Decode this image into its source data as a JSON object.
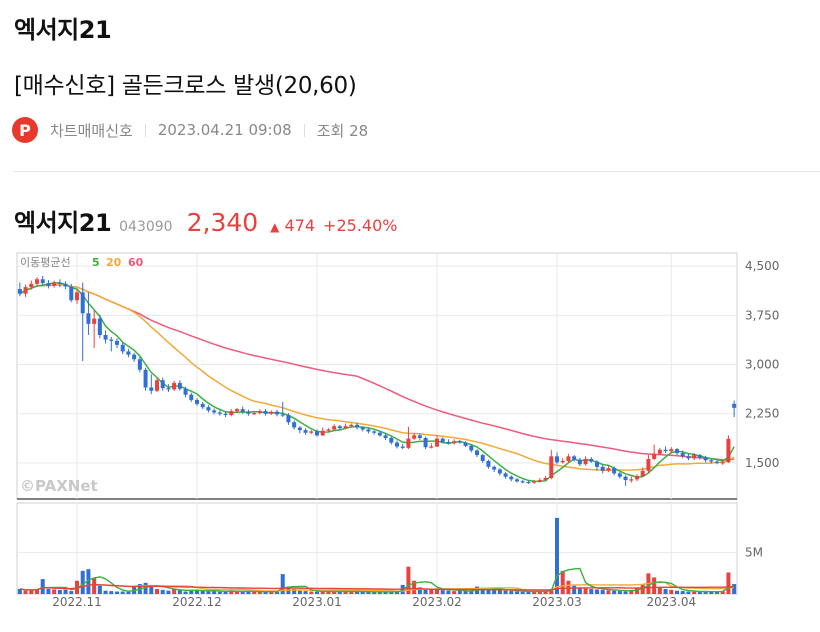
{
  "page": {
    "stock_title": "엑서지21",
    "post_title": "[매수신호] 골든크로스 발생(20,60)",
    "logo_letter": "P",
    "author": "차트매매신호",
    "datetime": "2023.04.21 09:08",
    "views": "조회 28"
  },
  "stock": {
    "name": "엑서지21",
    "code": "043090",
    "price": "2,340",
    "change_arrow": "▲",
    "change": "474",
    "change_rate": "+25.40%"
  },
  "colors": {
    "up": "#e8413e",
    "down": "#2f6fd6",
    "ma5": "#3cb043",
    "ma20": "#f2a93b",
    "ma60": "#ef5b7c",
    "grid": "#e9e9e9"
  },
  "chart_data": {
    "type": "candlestick",
    "legend": {
      "title": "이동평균선",
      "items": [
        "5",
        "20",
        "60"
      ]
    },
    "watermark": "©PAXNet",
    "price_axis": {
      "ticks": [
        "4,500",
        "3,750",
        "3,000",
        "2,250",
        "1,500"
      ],
      "values": [
        4500,
        3750,
        3000,
        2250,
        1500
      ],
      "ylim": [
        950,
        4700
      ]
    },
    "volume_axis": {
      "ticks": [
        "5M"
      ],
      "values": [
        5000000
      ],
      "ylim": [
        0,
        11000000
      ]
    },
    "x_labels": [
      "2022.11",
      "2022.12",
      "2023.01",
      "2023.02",
      "2023.03",
      "2023.04"
    ],
    "x_label_index": [
      10,
      31,
      52,
      73,
      94,
      114
    ],
    "candles": [
      [
        4150,
        4080,
        4250,
        4040
      ],
      [
        4080,
        4180,
        4220,
        4030
      ],
      [
        4180,
        4230,
        4280,
        4140
      ],
      [
        4230,
        4300,
        4330,
        4190
      ],
      [
        4300,
        4240,
        4350,
        4200
      ],
      [
        4240,
        4200,
        4290,
        4160
      ],
      [
        4200,
        4250,
        4280,
        4170
      ],
      [
        4250,
        4230,
        4300,
        4180
      ],
      [
        4230,
        4190,
        4270,
        4150
      ],
      [
        4190,
        3980,
        4230,
        3950
      ],
      [
        3980,
        4100,
        4150,
        3920
      ],
      [
        4100,
        3780,
        4250,
        3050
      ],
      [
        3780,
        3620,
        4100,
        3450
      ],
      [
        3620,
        3700,
        3820,
        3250
      ],
      [
        3700,
        3450,
        3760,
        3400
      ],
      [
        3450,
        3380,
        3520,
        3320
      ],
      [
        3380,
        3360,
        3420,
        3200
      ],
      [
        3360,
        3300,
        3400,
        3250
      ],
      [
        3300,
        3200,
        3340,
        3160
      ],
      [
        3200,
        3150,
        3240,
        3110
      ],
      [
        3150,
        3080,
        3180,
        3040
      ],
      [
        3080,
        2920,
        3120,
        2880
      ],
      [
        2920,
        2650,
        2950,
        2600
      ],
      [
        2650,
        2600,
        2850,
        2550
      ],
      [
        2600,
        2760,
        2800,
        2580
      ],
      [
        2760,
        2640,
        2800,
        2600
      ],
      [
        2640,
        2620,
        2700,
        2580
      ],
      [
        2620,
        2720,
        2750,
        2600
      ],
      [
        2720,
        2630,
        2760,
        2600
      ],
      [
        2630,
        2540,
        2660,
        2500
      ],
      [
        2540,
        2460,
        2570,
        2430
      ],
      [
        2460,
        2400,
        2490,
        2370
      ],
      [
        2400,
        2350,
        2430,
        2320
      ],
      [
        2350,
        2300,
        2380,
        2270
      ],
      [
        2300,
        2270,
        2330,
        2240
      ],
      [
        2270,
        2250,
        2300,
        2220
      ],
      [
        2250,
        2230,
        2290,
        2200
      ],
      [
        2230,
        2290,
        2320,
        2210
      ],
      [
        2290,
        2320,
        2340,
        2260
      ],
      [
        2320,
        2280,
        2360,
        2250
      ],
      [
        2280,
        2250,
        2310,
        2220
      ],
      [
        2250,
        2260,
        2290,
        2230
      ],
      [
        2260,
        2290,
        2320,
        2240
      ],
      [
        2290,
        2250,
        2320,
        2220
      ],
      [
        2250,
        2280,
        2300,
        2230
      ],
      [
        2280,
        2240,
        2310,
        2210
      ],
      [
        2240,
        2230,
        2430,
        2200
      ],
      [
        2230,
        2120,
        2260,
        2080
      ],
      [
        2120,
        2040,
        2150,
        2010
      ],
      [
        2040,
        2000,
        2060,
        1950
      ],
      [
        2000,
        1960,
        2030,
        1930
      ],
      [
        1960,
        1980,
        2000,
        1940
      ],
      [
        1980,
        1920,
        2010,
        1900
      ],
      [
        1920,
        1990,
        2040,
        1910
      ],
      [
        1990,
        2010,
        2030,
        1970
      ],
      [
        2010,
        2060,
        2090,
        1990
      ],
      [
        2060,
        2030,
        2080,
        2000
      ],
      [
        2030,
        2060,
        2100,
        2010
      ],
      [
        2060,
        2080,
        2100,
        2040
      ],
      [
        2080,
        2040,
        2110,
        2010
      ],
      [
        2040,
        2010,
        2060,
        1980
      ],
      [
        2010,
        1980,
        2030,
        1950
      ],
      [
        1980,
        1960,
        2000,
        1930
      ],
      [
        1960,
        1920,
        1990,
        1900
      ],
      [
        1920,
        1880,
        1950,
        1850
      ],
      [
        1880,
        1810,
        1900,
        1780
      ],
      [
        1810,
        1750,
        1840,
        1720
      ],
      [
        1750,
        1730,
        1790,
        1710
      ],
      [
        1730,
        1870,
        2050,
        1710
      ],
      [
        1870,
        1920,
        1950,
        1850
      ],
      [
        1920,
        1880,
        1950,
        1850
      ],
      [
        1880,
        1740,
        1900,
        1710
      ],
      [
        1740,
        1750,
        1800,
        1720
      ],
      [
        1750,
        1870,
        1920,
        1740
      ],
      [
        1870,
        1820,
        1890,
        1800
      ],
      [
        1820,
        1800,
        1860,
        1780
      ],
      [
        1800,
        1830,
        1860,
        1780
      ],
      [
        1830,
        1810,
        1850,
        1790
      ],
      [
        1810,
        1760,
        1830,
        1740
      ],
      [
        1760,
        1690,
        1780,
        1660
      ],
      [
        1690,
        1620,
        1710,
        1590
      ],
      [
        1620,
        1530,
        1640,
        1500
      ],
      [
        1530,
        1440,
        1550,
        1410
      ],
      [
        1440,
        1400,
        1460,
        1360
      ],
      [
        1400,
        1340,
        1420,
        1310
      ],
      [
        1340,
        1290,
        1360,
        1260
      ],
      [
        1290,
        1250,
        1310,
        1220
      ],
      [
        1250,
        1220,
        1270,
        1200
      ],
      [
        1220,
        1210,
        1240,
        1190
      ],
      [
        1210,
        1200,
        1230,
        1180
      ],
      [
        1200,
        1220,
        1240,
        1180
      ],
      [
        1220,
        1240,
        1270,
        1200
      ],
      [
        1240,
        1270,
        1300,
        1230
      ],
      [
        1270,
        1600,
        1700,
        1250
      ],
      [
        1600,
        1510,
        1660,
        1480
      ],
      [
        1510,
        1530,
        1570,
        1490
      ],
      [
        1530,
        1600,
        1640,
        1500
      ],
      [
        1600,
        1550,
        1620,
        1520
      ],
      [
        1550,
        1480,
        1580,
        1450
      ],
      [
        1480,
        1560,
        1600,
        1460
      ],
      [
        1560,
        1520,
        1590,
        1500
      ],
      [
        1520,
        1440,
        1540,
        1380
      ],
      [
        1440,
        1380,
        1470,
        1340
      ],
      [
        1380,
        1420,
        1460,
        1360
      ],
      [
        1420,
        1340,
        1450,
        1310
      ],
      [
        1340,
        1290,
        1360,
        1260
      ],
      [
        1290,
        1240,
        1310,
        1150
      ],
      [
        1240,
        1250,
        1290,
        1200
      ],
      [
        1250,
        1300,
        1330,
        1220
      ],
      [
        1300,
        1380,
        1430,
        1280
      ],
      [
        1380,
        1560,
        1620,
        1340
      ],
      [
        1560,
        1640,
        1780,
        1540
      ],
      [
        1640,
        1700,
        1730,
        1620
      ],
      [
        1700,
        1680,
        1750,
        1650
      ],
      [
        1680,
        1710,
        1740,
        1650
      ],
      [
        1710,
        1650,
        1730,
        1620
      ],
      [
        1650,
        1600,
        1690,
        1570
      ],
      [
        1600,
        1570,
        1640,
        1540
      ],
      [
        1570,
        1620,
        1650,
        1540
      ],
      [
        1620,
        1580,
        1640,
        1550
      ],
      [
        1580,
        1540,
        1610,
        1510
      ],
      [
        1540,
        1520,
        1560,
        1490
      ],
      [
        1520,
        1500,
        1550,
        1480
      ],
      [
        1500,
        1510,
        1540,
        1470
      ],
      [
        1510,
        1866,
        1920,
        1500
      ],
      [
        2400,
        2340,
        2450,
        2200
      ]
    ],
    "volumes": [
      0.62,
      0.4,
      0.48,
      0.55,
      1.8,
      0.62,
      0.55,
      0.48,
      0.52,
      0.35,
      1.6,
      2.8,
      3.0,
      1.95,
      1.0,
      0.4,
      0.35,
      0.3,
      0.3,
      0.28,
      0.9,
      1.2,
      1.35,
      0.9,
      0.6,
      0.5,
      0.4,
      0.6,
      0.45,
      0.3,
      0.5,
      0.42,
      0.38,
      0.35,
      0.32,
      0.28,
      0.3,
      0.45,
      0.3,
      0.28,
      0.3,
      0.25,
      0.28,
      0.26,
      0.3,
      0.26,
      2.4,
      0.9,
      0.6,
      0.4,
      0.35,
      0.3,
      0.28,
      0.26,
      0.3,
      0.35,
      0.3,
      0.28,
      0.3,
      0.26,
      0.26,
      0.28,
      0.24,
      0.26,
      0.26,
      0.28,
      0.3,
      1.1,
      3.3,
      1.6,
      0.8,
      0.55,
      0.6,
      0.7,
      0.45,
      0.4,
      0.35,
      0.4,
      0.35,
      0.3,
      0.9,
      0.7,
      0.55,
      0.5,
      0.45,
      0.4,
      0.35,
      0.3,
      0.28,
      0.26,
      0.3,
      0.35,
      0.45,
      0.6,
      9.2,
      2.8,
      1.6,
      1.0,
      0.8,
      0.7,
      0.6,
      0.55,
      0.5,
      0.45,
      0.4,
      0.35,
      0.3,
      0.5,
      0.8,
      1.2,
      2.5,
      2.0,
      0.8,
      0.6,
      0.5,
      0.4,
      0.35,
      0.3,
      0.28,
      0.26,
      0.3,
      0.3,
      0.28,
      0.35,
      2.6,
      1.2
    ]
  }
}
